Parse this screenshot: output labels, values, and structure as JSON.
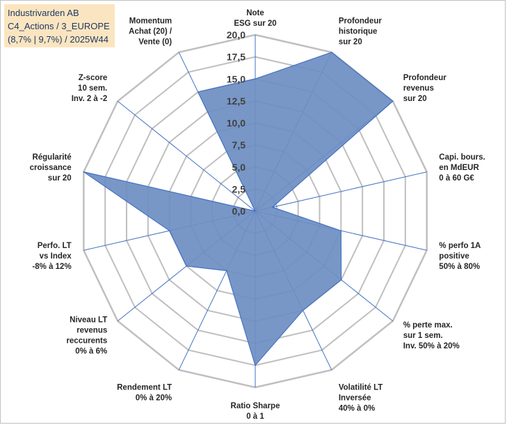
{
  "chart_data": {
    "type": "radar",
    "title_lines": [
      "Industrivarden AB",
      "C4_Actions / 3_EUROPE",
      "(8,7% | 9,7%) / 2025W44"
    ],
    "rmin": 0,
    "rmax": 20,
    "ticks": [
      "0,0",
      "2,5",
      "5,0",
      "7,5",
      "10,0",
      "12,5",
      "15,0",
      "17,5",
      "20,0"
    ],
    "tick_values": [
      0,
      2.5,
      5,
      7.5,
      10,
      12.5,
      15,
      17.5,
      20
    ],
    "axes": [
      {
        "label": [
          "Note",
          "ESG sur 20"
        ],
        "value": 15.0
      },
      {
        "label": [
          "Profondeur",
          "historique",
          "sur 20"
        ],
        "value": 20.0
      },
      {
        "label": [
          "Profondeur",
          "revenus",
          "sur 20"
        ],
        "value": 20.0
      },
      {
        "label": [
          "Capi. bours.",
          "en MdEUR",
          "0 à 60 G€"
        ],
        "value": 2.0
      },
      {
        "label": [
          "% perfo 1A",
          "positive",
          "50% à 80%"
        ],
        "value": 10.0
      },
      {
        "label": [
          "% perte max.",
          "sur 1 sem.",
          "Inv. 50% à 20%"
        ],
        "value": 12.5
      },
      {
        "label": [
          "Volatilité LT",
          "Inversée",
          "40% à 0%"
        ],
        "value": 12.5
      },
      {
        "label": [
          "Ratio Sharpe",
          "0 à 1"
        ],
        "value": 17.5
      },
      {
        "label": [
          "Rendement LT",
          "0% à 20%"
        ],
        "value": 7.5
      },
      {
        "label": [
          "Niveau LT",
          "revenus",
          "reccurents",
          "0% à 6%"
        ],
        "value": 10.0
      },
      {
        "label": [
          "Perfo. LT",
          "vs Index",
          "-8% à 12%"
        ],
        "value": 10.0
      },
      {
        "label": [
          "Régularité",
          "croissance",
          "sur 20"
        ],
        "value": 20.0
      },
      {
        "label": [
          "Z-score",
          "10 sem.",
          "Inv. 2 à -2"
        ],
        "value": 0.0
      },
      {
        "label": [
          "Momentum",
          "Achat (20) /",
          "Vente (0)"
        ],
        "value": 15.0
      }
    ],
    "colors": {
      "fill": "#6d8ec2",
      "stroke": "#4472c4",
      "grid": "#bfbfbf",
      "spoke": "#4472c4"
    }
  }
}
